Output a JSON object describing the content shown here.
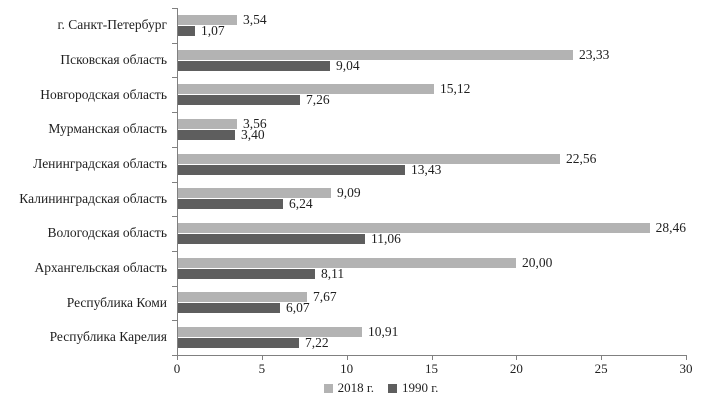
{
  "chart_data": {
    "type": "bar",
    "orientation": "horizontal",
    "title": "",
    "xlabel": "",
    "ylabel": "",
    "categories": [
      "г. Санкт-Петербург",
      "Псковская область",
      "Новгородская область",
      "Мурманская область",
      "Ленинградская область",
      "Калининградская область",
      "Вологодская область",
      "Архангельская область",
      "Республика Коми",
      "Республика Карелия"
    ],
    "series": [
      {
        "name": "2018 г.",
        "color": "#b3b3b3",
        "values": [
          3.54,
          23.33,
          15.12,
          3.56,
          22.56,
          9.09,
          28.46,
          20.0,
          7.67,
          10.91
        ]
      },
      {
        "name": "1990 г.",
        "color": "#5e5e5e",
        "values": [
          1.07,
          9.04,
          7.26,
          3.4,
          13.43,
          6.24,
          11.06,
          8.11,
          6.07,
          7.22
        ]
      }
    ],
    "value_labels": {
      "decimal_separator": ",",
      "decimals": 2
    },
    "xlim": [
      0,
      30
    ],
    "x_ticks": [
      0,
      5,
      10,
      15,
      20,
      25,
      30
    ],
    "grid": false,
    "legend_position": "bottom",
    "axis_color": "#808080",
    "text_color": "#1f1f1f",
    "background_color": "#ffffff"
  }
}
